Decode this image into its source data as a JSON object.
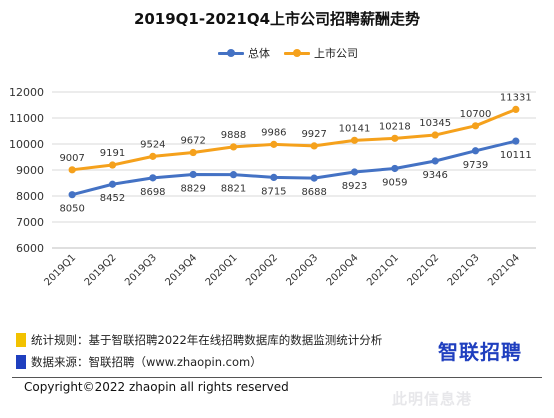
{
  "chart_data": {
    "type": "line",
    "title": "2019Q1-2021Q4上市公司招聘薪酬走势",
    "categories": [
      "2019Q1",
      "2019Q2",
      "2019Q3",
      "2019Q4",
      "2020Q1",
      "2020Q2",
      "2020Q3",
      "2020Q4",
      "2021Q1",
      "2021Q2",
      "2021Q3",
      "2021Q4"
    ],
    "series": [
      {
        "name": "总体",
        "color": "#4472C4",
        "values": [
          8050,
          8452,
          8698,
          8829,
          8821,
          8715,
          8688,
          8923,
          9059,
          9346,
          9739,
          10111
        ]
      },
      {
        "name": "上市公司",
        "color": "#F5A11C",
        "values": [
          9007,
          9191,
          9524,
          9672,
          9888,
          9986,
          9927,
          10141,
          10218,
          10345,
          10700,
          11331
        ]
      }
    ],
    "ylim": [
      6000,
      12000
    ],
    "yticks": [
      6000,
      7000,
      8000,
      9000,
      10000,
      11000,
      12000
    ],
    "grid": true,
    "legend": "top-center",
    "xlabel": "",
    "ylabel": ""
  },
  "notes": [
    {
      "text": "统计规则：基于智联招聘2022年在线招聘数据库的数据监测统计分析",
      "color": "#F2C200"
    },
    {
      "text": "数据来源：智联招聘（www.zhaopin.com）",
      "color": "#1F3FBF"
    }
  ],
  "brand": {
    "text": "智联招聘",
    "color": "#1F3FBF"
  },
  "copyright": "Copyright©2022 zhaopin all rights reserved",
  "watermark": "此明信息港"
}
